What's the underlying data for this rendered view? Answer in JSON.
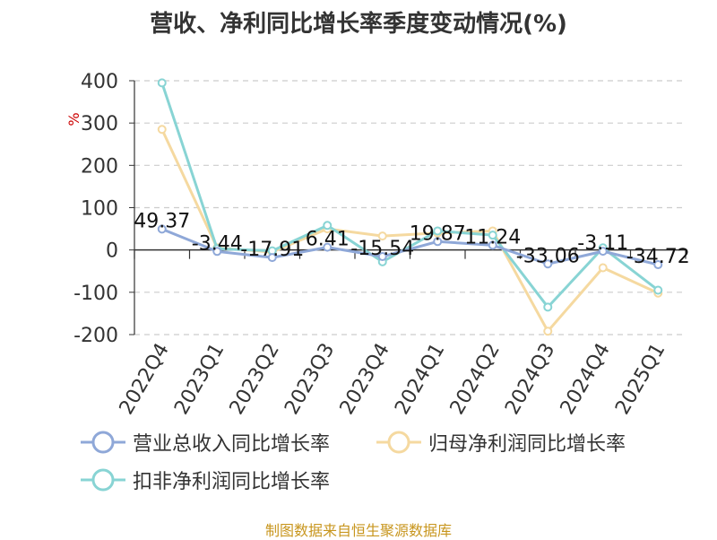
{
  "title": "营收、净利同比增长率季度变动情况(%)",
  "source": "制图数据来自恒生聚源数据库",
  "chart_data": {
    "type": "line",
    "title": "营收、净利同比增长率季度变动情况(%)",
    "ylabel": "%",
    "xlabel": "",
    "ylim": [
      -200,
      400
    ],
    "yticks": [
      400,
      300,
      200,
      100,
      0,
      -100,
      -200
    ],
    "grid": true,
    "legend_position": "bottom",
    "categories": [
      "2022Q4",
      "2023Q1",
      "2023Q2",
      "2023Q3",
      "2023Q4",
      "2024Q1",
      "2024Q2",
      "2024Q3",
      "2024Q4",
      "2025Q1"
    ],
    "series": [
      {
        "name": "营业总收入同比增长率",
        "color": "#8fa8d8",
        "values": [
          49.37,
          -3.44,
          -17.91,
          6.41,
          -15.54,
          19.87,
          11.24,
          -33.06,
          -3.11,
          -34.72
        ],
        "data_labels": [
          "49.37",
          "-3.44",
          "-17.91",
          "6.41",
          "-15.54",
          "19.87",
          "11.24",
          "-33.06",
          "-3.11",
          "-34.72"
        ]
      },
      {
        "name": "归母净利润同比增长率",
        "color": "#f5d9a0",
        "values": [
          285,
          5,
          -5,
          50,
          33,
          40,
          45,
          -192,
          -42,
          -102
        ]
      },
      {
        "name": "扣非净利润同比增长率",
        "color": "#88d4d4",
        "values": [
          395,
          3,
          -2,
          58,
          -28,
          45,
          35,
          -135,
          5,
          -95
        ]
      }
    ]
  }
}
